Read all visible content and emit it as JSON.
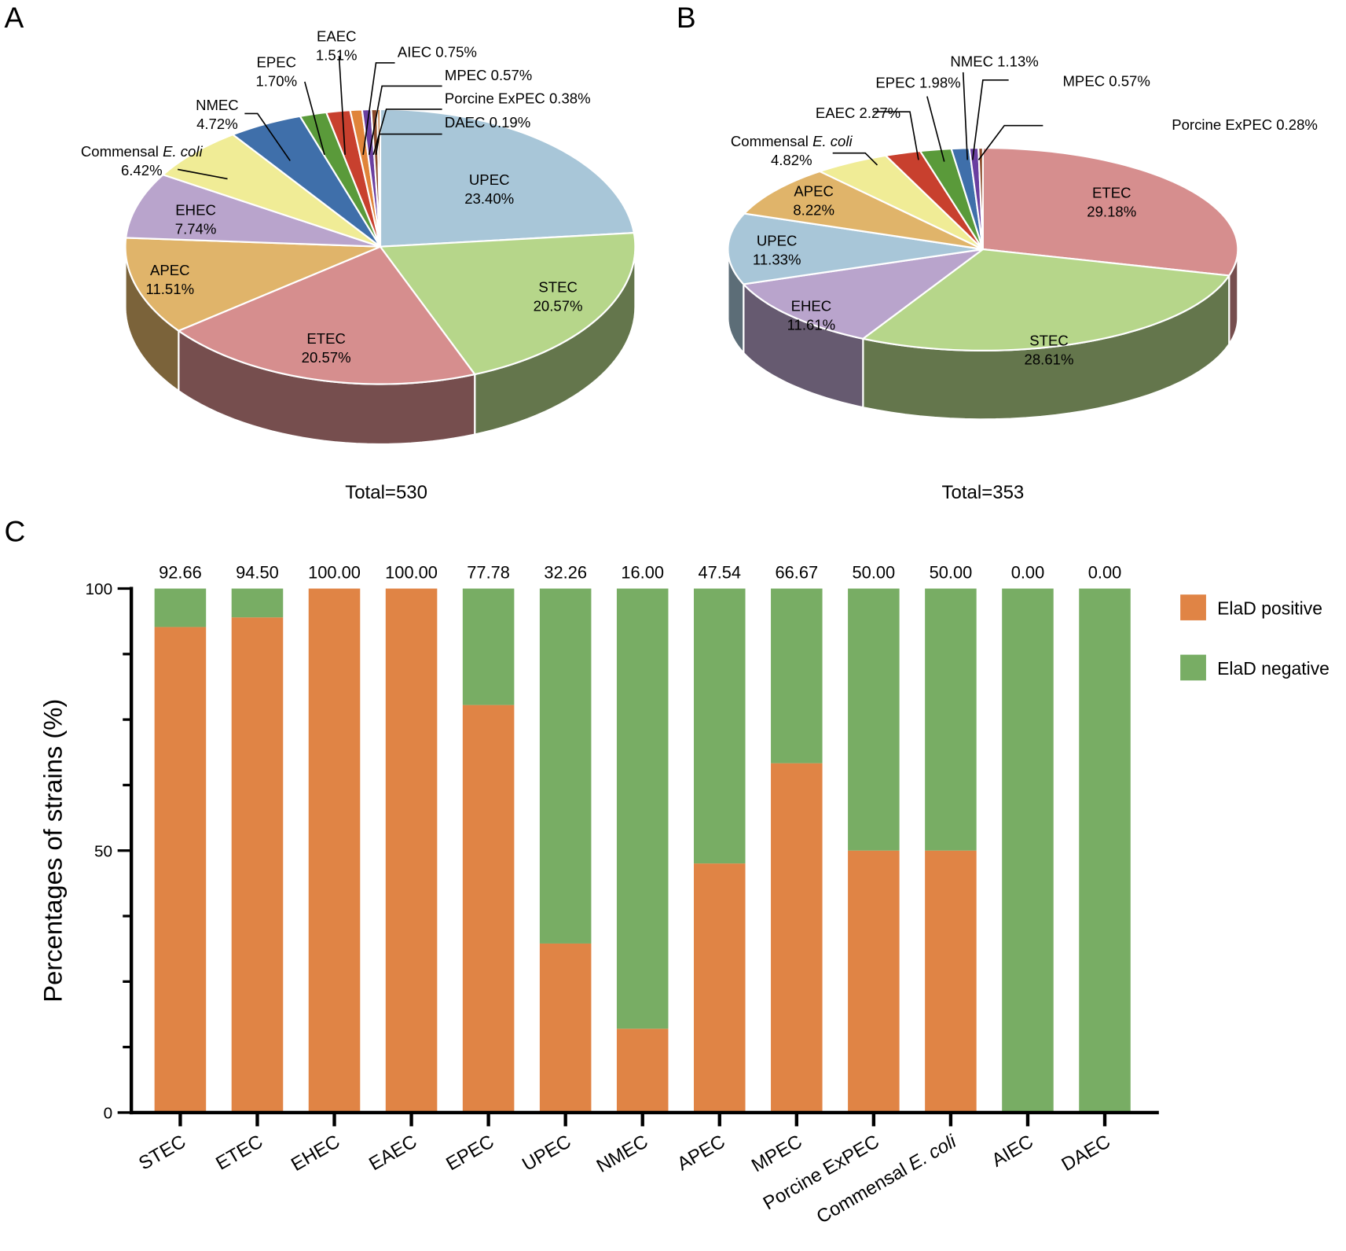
{
  "chart_data": [
    {
      "type": "pie",
      "panel": "A",
      "total_label": "Total=530",
      "slices": [
        {
          "name": "UPEC",
          "value": 23.4,
          "label": "23.40%",
          "color": "#a8c6d8"
        },
        {
          "name": "STEC",
          "value": 20.57,
          "label": "20.57%",
          "color": "#b6d68a"
        },
        {
          "name": "ETEC",
          "value": 20.57,
          "label": "20.57%",
          "color": "#d68e8e"
        },
        {
          "name": "APEC",
          "value": 11.51,
          "label": "11.51%",
          "color": "#e0b46a"
        },
        {
          "name": "EHEC",
          "value": 7.74,
          "label": "7.74%",
          "color": "#b9a4cc"
        },
        {
          "name": "Commensal E. coli",
          "value": 6.42,
          "label": "6.42%",
          "color": "#f0ec96"
        },
        {
          "name": "NMEC",
          "value": 4.72,
          "label": "4.72%",
          "color": "#3f6faa"
        },
        {
          "name": "EPEC",
          "value": 1.7,
          "label": "1.70%",
          "color": "#5a9a3a"
        },
        {
          "name": "EAEC",
          "value": 1.51,
          "label": "1.51%",
          "color": "#c8402e"
        },
        {
          "name": "AIEC",
          "value": 0.75,
          "label": "0.75%",
          "color": "#e0843a"
        },
        {
          "name": "MPEC",
          "value": 0.57,
          "label": "0.57%",
          "color": "#6a3fa0"
        },
        {
          "name": "Porcine ExPEC",
          "value": 0.38,
          "label": "0.38%",
          "color": "#8a4a2a"
        },
        {
          "name": "DAEC",
          "value": 0.19,
          "label": "0.19%",
          "color": "#c07030"
        }
      ]
    },
    {
      "type": "pie",
      "panel": "B",
      "total_label": "Total=353",
      "slices": [
        {
          "name": "ETEC",
          "value": 29.18,
          "label": "29.18%",
          "color": "#d68e8e"
        },
        {
          "name": "STEC",
          "value": 28.61,
          "label": "28.61%",
          "color": "#b6d68a"
        },
        {
          "name": "EHEC",
          "value": 11.61,
          "label": "11.61%",
          "color": "#b9a4cc"
        },
        {
          "name": "UPEC",
          "value": 11.33,
          "label": "11.33%",
          "color": "#a8c6d8"
        },
        {
          "name": "APEC",
          "value": 8.22,
          "label": "8.22%",
          "color": "#e0b46a"
        },
        {
          "name": "Commensal E. coli",
          "value": 4.82,
          "label": "4.82%",
          "color": "#f0ec96"
        },
        {
          "name": "EAEC",
          "value": 2.27,
          "label": "2.27%",
          "color": "#c8402e"
        },
        {
          "name": "EPEC",
          "value": 1.98,
          "label": "1.98%",
          "color": "#5a9a3a"
        },
        {
          "name": "NMEC",
          "value": 1.13,
          "label": "1.13%",
          "color": "#3f6faa"
        },
        {
          "name": "MPEC",
          "value": 0.57,
          "label": "0.57%",
          "color": "#6a3fa0"
        },
        {
          "name": "Porcine ExPEC",
          "value": 0.28,
          "label": "0.28%",
          "color": "#8a4a2a"
        }
      ]
    },
    {
      "type": "bar",
      "panel": "C",
      "stacked": true,
      "ylabel": "Percentages of strains (%)",
      "ylim": [
        0,
        100
      ],
      "yticks": [
        0,
        50,
        100
      ],
      "categories": [
        "STEC",
        "ETEC",
        "EHEC",
        "EAEC",
        "EPEC",
        "UPEC",
        "NMEC",
        "APEC",
        "MPEC",
        "Porcine ExPEC",
        "Commensal E. coli",
        "AIEC",
        "DAEC"
      ],
      "data_labels": [
        "92.66",
        "94.50",
        "100.00",
        "100.00",
        "77.78",
        "32.26",
        "16.00",
        "47.54",
        "66.67",
        "50.00",
        "50.00",
        "0.00",
        "0.00"
      ],
      "series": [
        {
          "name": "ElaD positive",
          "color": "#e08445",
          "values": [
            92.66,
            94.5,
            100,
            100,
            77.78,
            32.26,
            16.0,
            47.54,
            66.67,
            50,
            50,
            0,
            0
          ]
        },
        {
          "name": "ElaD negative",
          "color": "#78ad64",
          "values": [
            7.34,
            5.5,
            0,
            0,
            22.22,
            67.74,
            84.0,
            52.46,
            33.33,
            50,
            50,
            100,
            100
          ]
        }
      ],
      "legend_position": "right"
    }
  ]
}
